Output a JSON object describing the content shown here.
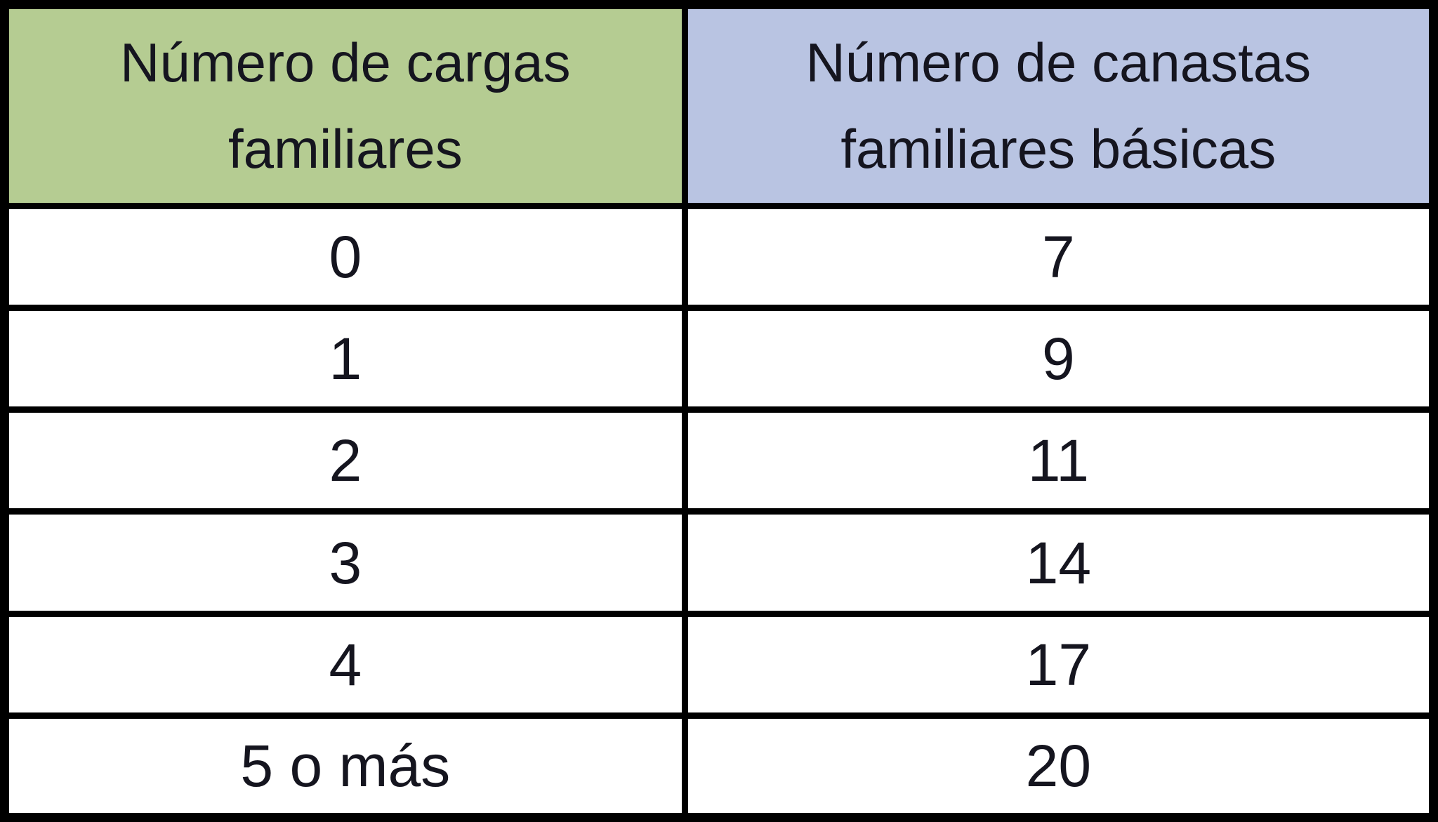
{
  "table": {
    "columns": [
      {
        "header": "Número de cargas familiares",
        "header_bg": "#b5cc92"
      },
      {
        "header": "Número de canastas familiares básicas",
        "header_bg": "#b9c4e2"
      }
    ],
    "rows": [
      {
        "cargas": "0",
        "canastas": "7"
      },
      {
        "cargas": "1",
        "canastas": "9"
      },
      {
        "cargas": "2",
        "canastas": "11"
      },
      {
        "cargas": "3",
        "canastas": "14"
      },
      {
        "cargas": "4",
        "canastas": "17"
      },
      {
        "cargas": "5 o más",
        "canastas": "20"
      }
    ],
    "border_color": "#000000",
    "cell_bg": "#ffffff",
    "text_color": "#15151f"
  },
  "chart_data": {
    "type": "table",
    "title": "",
    "columns": [
      "Número de cargas familiares",
      "Número de canastas familiares básicas"
    ],
    "rows": [
      [
        "0",
        "7"
      ],
      [
        "1",
        "9"
      ],
      [
        "2",
        "11"
      ],
      [
        "3",
        "14"
      ],
      [
        "4",
        "17"
      ],
      [
        "5 o más",
        "20"
      ]
    ]
  }
}
